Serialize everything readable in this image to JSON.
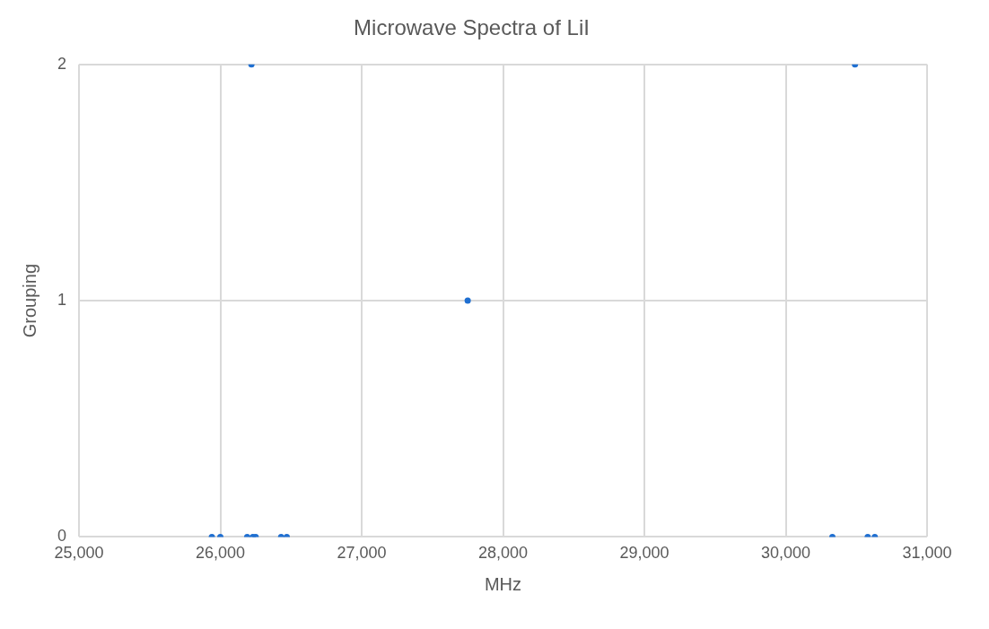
{
  "chart_data": {
    "type": "scatter",
    "title": "Microwave Spectra of LiI",
    "xlabel": "MHz",
    "ylabel": "Grouping",
    "x": [
      25940,
      26000,
      26190,
      26230,
      26250,
      26430,
      26470,
      30330,
      30580,
      30630,
      26220,
      30490,
      27750
    ],
    "values": [
      0,
      0,
      0,
      0,
      0,
      0,
      0,
      0,
      0,
      0,
      2,
      2,
      1
    ],
    "color": "#1f6fd1",
    "marker": "circle",
    "xlim": [
      25000,
      31000
    ],
    "xticks": [
      {
        "value": 25000,
        "label": "25,000"
      },
      {
        "value": 26000,
        "label": "26,000"
      },
      {
        "value": 27000,
        "label": "27,000"
      },
      {
        "value": 28000,
        "label": "28,000"
      },
      {
        "value": 29000,
        "label": "29,000"
      },
      {
        "value": 30000,
        "label": "30,000"
      },
      {
        "value": 31000,
        "label": "31,000"
      }
    ],
    "ylim": [
      0,
      2
    ],
    "yticks": [
      0,
      1,
      2
    ],
    "grid": true,
    "legend": false
  }
}
